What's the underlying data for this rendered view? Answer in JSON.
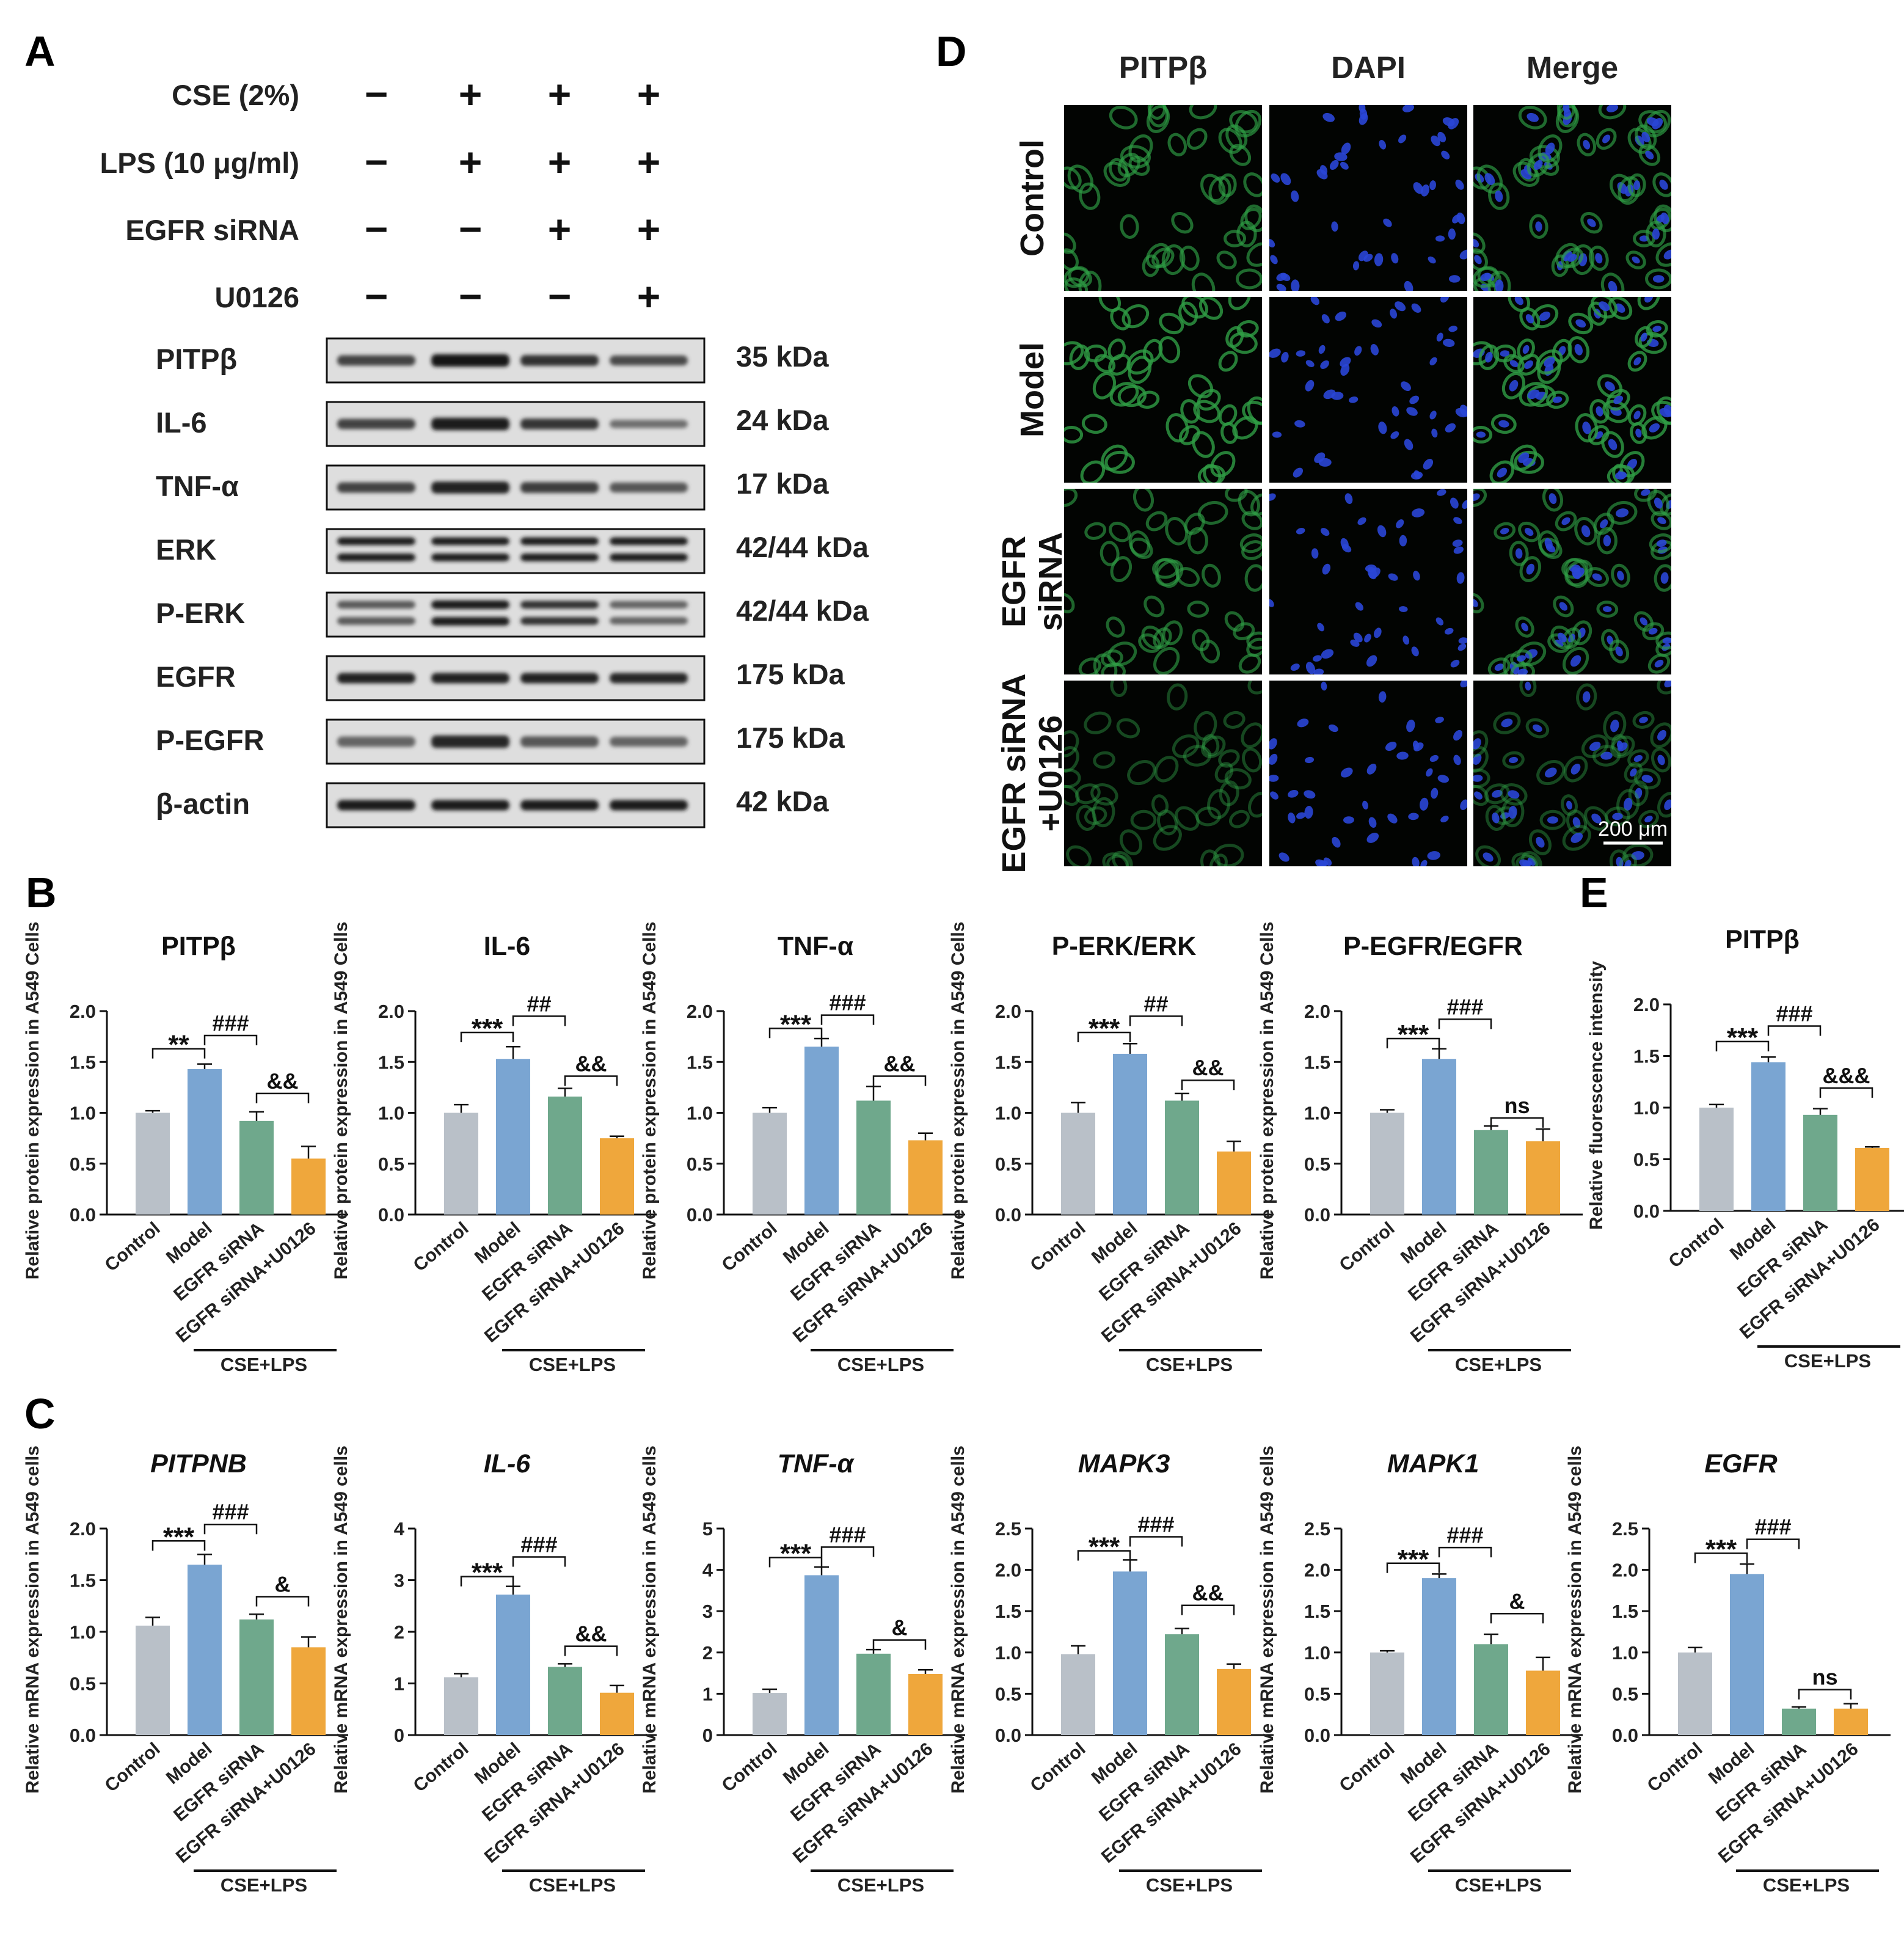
{
  "colors": {
    "control": "#b9c0c8",
    "model": "#7aa5d2",
    "egfr_sirna": "#6fa88c",
    "egfr_sirna_u0126": "#efa73c",
    "blot_bg": "#dedede",
    "if_green": "#2f9e45",
    "if_blue": "#2a46d6"
  },
  "panel_letters": [
    "A",
    "B",
    "C",
    "D",
    "E"
  ],
  "panel_a": {
    "rows": [
      {
        "label": "CSE (2%)",
        "signs": [
          "−",
          "+",
          "+",
          "+"
        ]
      },
      {
        "label": "LPS (10 μg/ml)",
        "signs": [
          "−",
          "+",
          "+",
          "+"
        ]
      },
      {
        "label": "EGFR siRNA",
        "signs": [
          "−",
          "−",
          "+",
          "+"
        ]
      },
      {
        "label": "U0126",
        "signs": [
          "−",
          "−",
          "−",
          "+"
        ]
      }
    ],
    "blots": [
      {
        "protein": "PITPβ",
        "kda": "35 kDa",
        "intensity": [
          0.72,
          0.95,
          0.8,
          0.68
        ],
        "thickness": [
          1,
          1.2,
          1.05,
          0.95
        ],
        "double": false
      },
      {
        "protein": "IL-6",
        "kda": "24 kDa",
        "intensity": [
          0.72,
          0.9,
          0.78,
          0.5
        ],
        "thickness": [
          1,
          1.2,
          1.05,
          0.8
        ],
        "double": false
      },
      {
        "protein": "TNF-α",
        "kda": "17 kDa",
        "intensity": [
          0.72,
          0.88,
          0.75,
          0.62
        ],
        "thickness": [
          1,
          1.15,
          1.05,
          0.95
        ],
        "double": false
      },
      {
        "protein": "ERK",
        "kda": "42/44 kDa",
        "intensity": [
          0.92,
          0.92,
          0.9,
          0.9
        ],
        "thickness": [
          1,
          1,
          1,
          1
        ],
        "double": true
      },
      {
        "protein": "P-ERK",
        "kda": "42/44 kDa",
        "intensity": [
          0.6,
          0.9,
          0.8,
          0.55
        ],
        "thickness": [
          1,
          1.1,
          1,
          0.95
        ],
        "double": true
      },
      {
        "protein": "EGFR",
        "kda": "175 kDa",
        "intensity": [
          0.88,
          0.88,
          0.88,
          0.85
        ],
        "thickness": [
          1,
          1,
          1,
          1
        ],
        "double": false
      },
      {
        "protein": "P-EGFR",
        "kda": "175 kDa",
        "intensity": [
          0.55,
          0.85,
          0.62,
          0.55
        ],
        "thickness": [
          1,
          1.2,
          1.05,
          0.95
        ],
        "double": false
      },
      {
        "protein": "β-actin",
        "kda": "42 kDa",
        "intensity": [
          0.92,
          0.92,
          0.92,
          0.92
        ],
        "thickness": [
          1,
          1,
          1,
          1
        ],
        "double": false
      }
    ]
  },
  "panel_d": {
    "columns": [
      "PITPβ",
      "DAPI",
      "Merge"
    ],
    "rows": [
      {
        "lines": [
          "Control"
        ],
        "green_level": 0.75
      },
      {
        "lines": [
          "Model"
        ],
        "green_level": 1.0
      },
      {
        "lines": [
          "EGFR",
          "siRNA"
        ],
        "green_level": 0.7
      },
      {
        "lines": [
          "EGFR siRNA",
          "+U0126"
        ],
        "green_level": 0.35
      }
    ],
    "scale_bar": "200 μm"
  },
  "x_categories": [
    "Control",
    "Model",
    "EGFR siRNA",
    "EGFR siRNA+U0126"
  ],
  "group_label": "CSE+LPS",
  "chart_data": [
    {
      "panel": "B",
      "type": "bar",
      "title": "PITPβ",
      "italic": false,
      "ylabel": "Relative protein expression in A549 Cells",
      "ylim": [
        0,
        2.0
      ],
      "yticks": [
        0.0,
        0.5,
        1.0,
        1.5,
        2.0
      ],
      "tick_decimals": 1,
      "categories": [
        "Control",
        "Model",
        "EGFR siRNA",
        "EGFR siRNA+U0126"
      ],
      "values": [
        1.0,
        1.43,
        0.92,
        0.55
      ],
      "errors": [
        0.02,
        0.05,
        0.09,
        0.12
      ],
      "annotations": [
        {
          "from": 0,
          "to": 1,
          "label": "**",
          "y": 1.63
        },
        {
          "from": 1,
          "to": 2,
          "label": "###",
          "y": 1.76
        },
        {
          "from": 2,
          "to": 3,
          "label": "&&",
          "y": 1.19
        }
      ]
    },
    {
      "panel": "B",
      "type": "bar",
      "title": "IL-6",
      "italic": false,
      "ylabel": "Relative protein expression in A549 Cells",
      "ylim": [
        0,
        2.0
      ],
      "yticks": [
        0.0,
        0.5,
        1.0,
        1.5,
        2.0
      ],
      "tick_decimals": 1,
      "categories": [
        "Control",
        "Model",
        "EGFR siRNA",
        "EGFR siRNA+U0126"
      ],
      "values": [
        1.0,
        1.53,
        1.16,
        0.75
      ],
      "errors": [
        0.08,
        0.12,
        0.08,
        0.02
      ],
      "annotations": [
        {
          "from": 0,
          "to": 1,
          "label": "***",
          "y": 1.79
        },
        {
          "from": 1,
          "to": 2,
          "label": "##",
          "y": 1.95
        },
        {
          "from": 2,
          "to": 3,
          "label": "&&",
          "y": 1.36
        }
      ]
    },
    {
      "panel": "B",
      "type": "bar",
      "title": "TNF-α",
      "italic": false,
      "ylabel": "Relative protein expression in A549 Cells",
      "ylim": [
        0,
        2.0
      ],
      "yticks": [
        0.0,
        0.5,
        1.0,
        1.5,
        2.0
      ],
      "tick_decimals": 1,
      "categories": [
        "Control",
        "Model",
        "EGFR siRNA",
        "EGFR siRNA+U0126"
      ],
      "values": [
        1.0,
        1.65,
        1.12,
        0.73
      ],
      "errors": [
        0.05,
        0.08,
        0.14,
        0.07
      ],
      "annotations": [
        {
          "from": 0,
          "to": 1,
          "label": "***",
          "y": 1.83
        },
        {
          "from": 1,
          "to": 2,
          "label": "###",
          "y": 1.96
        },
        {
          "from": 2,
          "to": 3,
          "label": "&&",
          "y": 1.36
        }
      ]
    },
    {
      "panel": "B",
      "type": "bar",
      "title": "P-ERK/ERK",
      "italic": false,
      "ylabel": "Relative protein expression in A549 Cells",
      "ylim": [
        0,
        2.0
      ],
      "yticks": [
        0.0,
        0.5,
        1.0,
        1.5,
        2.0
      ],
      "tick_decimals": 1,
      "categories": [
        "Control",
        "Model",
        "EGFR siRNA",
        "EGFR siRNA+U0126"
      ],
      "values": [
        1.0,
        1.58,
        1.12,
        0.62
      ],
      "errors": [
        0.1,
        0.1,
        0.07,
        0.1
      ],
      "annotations": [
        {
          "from": 0,
          "to": 1,
          "label": "***",
          "y": 1.79
        },
        {
          "from": 1,
          "to": 2,
          "label": "##",
          "y": 1.95
        },
        {
          "from": 2,
          "to": 3,
          "label": "&&",
          "y": 1.32
        }
      ]
    },
    {
      "panel": "B",
      "type": "bar",
      "title": "P-EGFR/EGFR",
      "italic": false,
      "ylabel": "Relative protein expression in A549 Cells",
      "ylim": [
        0,
        2.0
      ],
      "yticks": [
        0.0,
        0.5,
        1.0,
        1.5,
        2.0
      ],
      "tick_decimals": 1,
      "categories": [
        "Control",
        "Model",
        "EGFR siRNA",
        "EGFR siRNA+U0126"
      ],
      "values": [
        1.0,
        1.53,
        0.83,
        0.72
      ],
      "errors": [
        0.03,
        0.1,
        0.04,
        0.12
      ],
      "annotations": [
        {
          "from": 0,
          "to": 1,
          "label": "***",
          "y": 1.73
        },
        {
          "from": 1,
          "to": 2,
          "label": "###",
          "y": 1.92
        },
        {
          "from": 2,
          "to": 3,
          "label": "ns",
          "y": 0.95
        }
      ]
    },
    {
      "panel": "E",
      "type": "bar",
      "title": "PITPβ",
      "italic": false,
      "ylabel": "Relative fluorescence intensity",
      "ylim": [
        0,
        2.0
      ],
      "yticks": [
        0.0,
        0.5,
        1.0,
        1.5,
        2.0
      ],
      "tick_decimals": 1,
      "categories": [
        "Control",
        "Model",
        "EGFR siRNA",
        "EGFR siRNA+U0126"
      ],
      "values": [
        1.0,
        1.44,
        0.93,
        0.61
      ],
      "errors": [
        0.03,
        0.05,
        0.06,
        0.01
      ],
      "annotations": [
        {
          "from": 0,
          "to": 1,
          "label": "***",
          "y": 1.64
        },
        {
          "from": 1,
          "to": 2,
          "label": "###",
          "y": 1.79
        },
        {
          "from": 2,
          "to": 3,
          "label": "&&&",
          "y": 1.19
        }
      ]
    },
    {
      "panel": "C",
      "type": "bar",
      "title": "PITPNB",
      "italic": true,
      "ylabel": "Relative mRNA expression in A549 cells",
      "ylim": [
        0,
        2.0
      ],
      "yticks": [
        0.0,
        0.5,
        1.0,
        1.5,
        2.0
      ],
      "tick_decimals": 1,
      "categories": [
        "Control",
        "Model",
        "EGFR siRNA",
        "EGFR siRNA+U0126"
      ],
      "values": [
        1.06,
        1.65,
        1.12,
        0.85
      ],
      "errors": [
        0.08,
        0.1,
        0.05,
        0.1
      ],
      "annotations": [
        {
          "from": 0,
          "to": 1,
          "label": "***",
          "y": 1.88
        },
        {
          "from": 1,
          "to": 2,
          "label": "###",
          "y": 2.04
        },
        {
          "from": 2,
          "to": 3,
          "label": "&",
          "y": 1.34
        }
      ]
    },
    {
      "panel": "C",
      "type": "bar",
      "title": "IL-6",
      "italic": true,
      "ylabel": "Relative mRNA expression in A549 cells",
      "ylim": [
        0,
        4
      ],
      "yticks": [
        0,
        1,
        2,
        3,
        4
      ],
      "tick_decimals": 0,
      "categories": [
        "Control",
        "Model",
        "EGFR siRNA",
        "EGFR siRNA+U0126"
      ],
      "values": [
        1.12,
        2.72,
        1.32,
        0.82
      ],
      "errors": [
        0.07,
        0.16,
        0.06,
        0.14
      ],
      "annotations": [
        {
          "from": 0,
          "to": 1,
          "label": "***",
          "y": 3.07
        },
        {
          "from": 1,
          "to": 2,
          "label": "###",
          "y": 3.45
        },
        {
          "from": 2,
          "to": 3,
          "label": "&&",
          "y": 1.72
        }
      ]
    },
    {
      "panel": "C",
      "type": "bar",
      "title": "TNF-α",
      "italic": true,
      "ylabel": "Relative mRNA expression in A549 cells",
      "ylim": [
        0,
        5
      ],
      "yticks": [
        0,
        1,
        2,
        3,
        4,
        5
      ],
      "tick_decimals": 0,
      "categories": [
        "Control",
        "Model",
        "EGFR siRNA",
        "EGFR siRNA+U0126"
      ],
      "values": [
        1.02,
        3.87,
        1.97,
        1.48
      ],
      "errors": [
        0.09,
        0.2,
        0.1,
        0.1
      ],
      "annotations": [
        {
          "from": 0,
          "to": 1,
          "label": "***",
          "y": 4.3
        },
        {
          "from": 1,
          "to": 2,
          "label": "###",
          "y": 4.55
        },
        {
          "from": 2,
          "to": 3,
          "label": "&",
          "y": 2.3
        }
      ]
    },
    {
      "panel": "C",
      "type": "bar",
      "title": "MAPK3",
      "italic": true,
      "ylabel": "Relative mRNA expression in A549 cells",
      "ylim": [
        0,
        2.5
      ],
      "yticks": [
        0.0,
        0.5,
        1.0,
        1.5,
        2.0,
        2.5
      ],
      "tick_decimals": 1,
      "categories": [
        "Control",
        "Model",
        "EGFR siRNA",
        "EGFR siRNA+U0126"
      ],
      "values": [
        0.98,
        1.98,
        1.22,
        0.8
      ],
      "errors": [
        0.1,
        0.14,
        0.07,
        0.06
      ],
      "annotations": [
        {
          "from": 0,
          "to": 1,
          "label": "***",
          "y": 2.23
        },
        {
          "from": 1,
          "to": 2,
          "label": "###",
          "y": 2.4
        },
        {
          "from": 2,
          "to": 3,
          "label": "&&",
          "y": 1.57
        }
      ]
    },
    {
      "panel": "C",
      "type": "bar",
      "title": "MAPK1",
      "italic": true,
      "ylabel": "Relative mRNA expression in A549 cells",
      "ylim": [
        0,
        2.5
      ],
      "yticks": [
        0.0,
        0.5,
        1.0,
        1.5,
        2.0,
        2.5
      ],
      "tick_decimals": 1,
      "categories": [
        "Control",
        "Model",
        "EGFR siRNA",
        "EGFR siRNA+U0126"
      ],
      "values": [
        1.0,
        1.9,
        1.1,
        0.78
      ],
      "errors": [
        0.02,
        0.05,
        0.12,
        0.16
      ],
      "annotations": [
        {
          "from": 0,
          "to": 1,
          "label": "***",
          "y": 2.08
        },
        {
          "from": 1,
          "to": 2,
          "label": "###",
          "y": 2.27
        },
        {
          "from": 2,
          "to": 3,
          "label": "&",
          "y": 1.47
        }
      ]
    },
    {
      "panel": "C",
      "type": "bar",
      "title": "EGFR",
      "italic": true,
      "ylabel": "Relative mRNA expression in A549 cells",
      "ylim": [
        0,
        2.5
      ],
      "yticks": [
        0.0,
        0.5,
        1.0,
        1.5,
        2.0,
        2.5
      ],
      "tick_decimals": 1,
      "categories": [
        "Control",
        "Model",
        "EGFR siRNA",
        "EGFR siRNA+U0126"
      ],
      "values": [
        1.0,
        1.95,
        0.32,
        0.32
      ],
      "errors": [
        0.06,
        0.12,
        0.02,
        0.06
      ],
      "annotations": [
        {
          "from": 0,
          "to": 1,
          "label": "***",
          "y": 2.2
        },
        {
          "from": 1,
          "to": 2,
          "label": "###",
          "y": 2.37
        },
        {
          "from": 2,
          "to": 3,
          "label": "ns",
          "y": 0.55
        }
      ]
    }
  ]
}
